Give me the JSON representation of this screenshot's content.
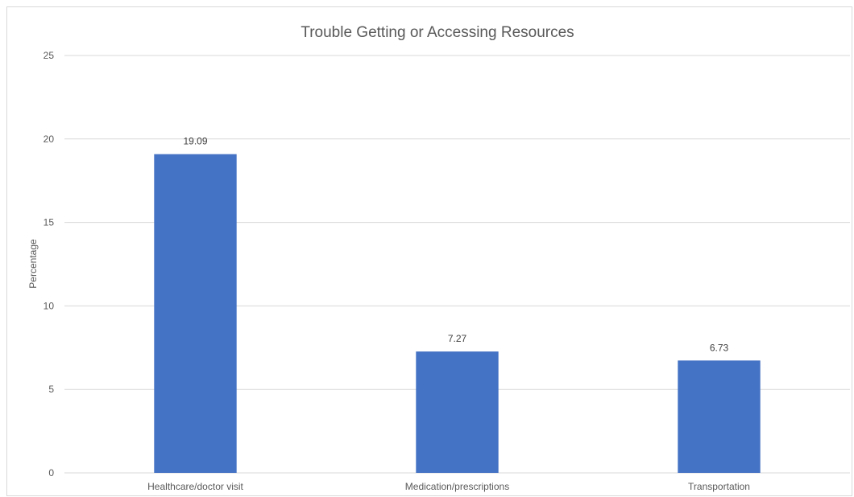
{
  "chart_data": {
    "type": "bar",
    "title": "Trouble Getting or Accessing Resources",
    "xlabel": "",
    "ylabel": "Percentage",
    "categories": [
      "Healthcare/doctor visit",
      "Medication/prescriptions",
      "Transportation"
    ],
    "values": [
      19.09,
      7.27,
      6.73
    ],
    "data_labels": [
      "19.09",
      "7.27",
      "6.73"
    ],
    "ylim": [
      0,
      25
    ],
    "yticks": [
      0,
      5,
      10,
      15,
      20,
      25
    ],
    "grid": true,
    "legend": "none",
    "colors": {
      "bar": "#4472c4",
      "grid": "#d9d9d9",
      "text": "#595959",
      "label": "#404040"
    }
  }
}
